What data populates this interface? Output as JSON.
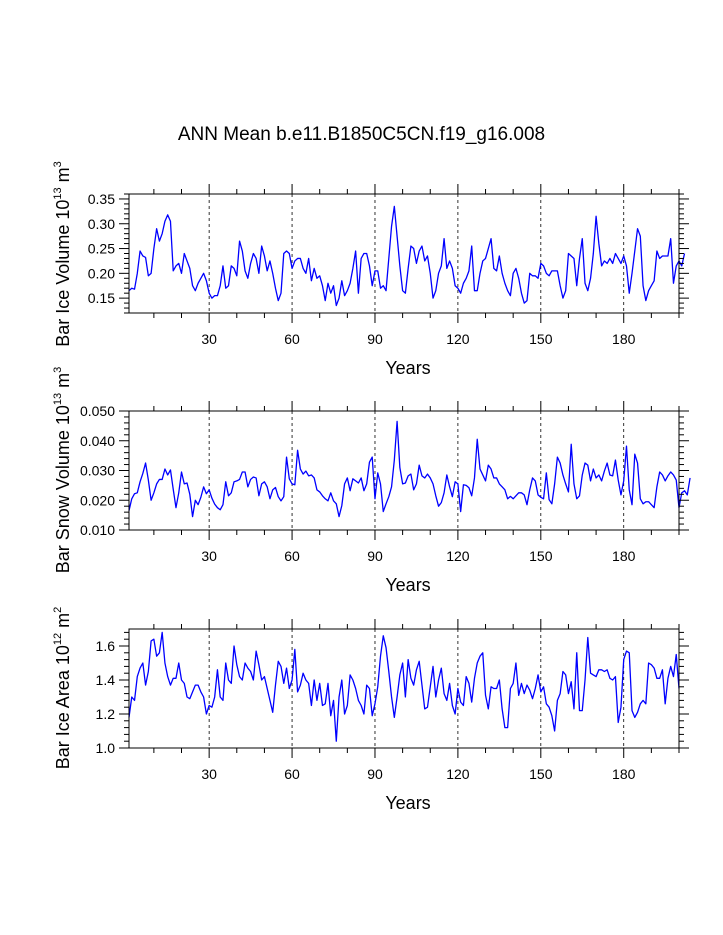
{
  "title": "ANN Mean b.e11.B1850C5CN.f19_g16.008",
  "colors": {
    "line": "#0000ff",
    "axis": "#000000",
    "grid": "#000000"
  },
  "chart_data": [
    {
      "type": "line",
      "name": "ice-volume",
      "ylabel_main": "Bar Ice Volume 10",
      "ylabel_exp": "13",
      "ylabel_unit": " m",
      "ylabel_unit_exp": "3",
      "xlabel": "Years",
      "xlim": [
        1,
        200
      ],
      "ylim": [
        0.12,
        0.36
      ],
      "yticks": [
        0.15,
        0.2,
        0.25,
        0.3,
        0.35
      ],
      "ytick_labels": [
        "0.15",
        "0.20",
        "0.25",
        "0.30",
        "0.35"
      ],
      "xticks": [
        30,
        60,
        90,
        120,
        150,
        180
      ],
      "xtick_labels": [
        "30",
        "60",
        "90",
        "120",
        "150",
        "180"
      ],
      "vlines": [
        30,
        60,
        90,
        120,
        150,
        180
      ],
      "x_start": 1,
      "values": [
        0.165,
        0.17,
        0.168,
        0.2,
        0.245,
        0.235,
        0.232,
        0.195,
        0.2,
        0.25,
        0.29,
        0.265,
        0.28,
        0.305,
        0.318,
        0.305,
        0.205,
        0.215,
        0.22,
        0.2,
        0.24,
        0.225,
        0.21,
        0.175,
        0.165,
        0.18,
        0.19,
        0.2,
        0.185,
        0.16,
        0.15,
        0.155,
        0.155,
        0.175,
        0.215,
        0.17,
        0.175,
        0.215,
        0.21,
        0.195,
        0.265,
        0.245,
        0.205,
        0.19,
        0.22,
        0.24,
        0.23,
        0.2,
        0.255,
        0.235,
        0.205,
        0.225,
        0.2,
        0.17,
        0.145,
        0.16,
        0.24,
        0.245,
        0.24,
        0.21,
        0.225,
        0.23,
        0.23,
        0.21,
        0.2,
        0.23,
        0.185,
        0.21,
        0.19,
        0.195,
        0.175,
        0.145,
        0.18,
        0.16,
        0.175,
        0.135,
        0.15,
        0.185,
        0.155,
        0.165,
        0.18,
        0.21,
        0.245,
        0.16,
        0.23,
        0.24,
        0.24,
        0.215,
        0.175,
        0.205,
        0.205,
        0.17,
        0.175,
        0.165,
        0.23,
        0.295,
        0.335,
        0.275,
        0.215,
        0.165,
        0.16,
        0.21,
        0.255,
        0.25,
        0.22,
        0.245,
        0.255,
        0.225,
        0.235,
        0.2,
        0.15,
        0.165,
        0.2,
        0.215,
        0.27,
        0.21,
        0.225,
        0.21,
        0.175,
        0.17,
        0.16,
        0.18,
        0.19,
        0.205,
        0.255,
        0.165,
        0.165,
        0.2,
        0.225,
        0.23,
        0.25,
        0.27,
        0.21,
        0.205,
        0.235,
        0.2,
        0.18,
        0.165,
        0.155,
        0.2,
        0.21,
        0.19,
        0.16,
        0.14,
        0.145,
        0.2,
        0.195,
        0.195,
        0.19,
        0.22,
        0.215,
        0.2,
        0.195,
        0.205,
        0.205,
        0.205,
        0.175,
        0.15,
        0.165,
        0.24,
        0.235,
        0.23,
        0.175,
        0.23,
        0.27,
        0.18,
        0.165,
        0.19,
        0.24,
        0.315,
        0.26,
        0.215,
        0.225,
        0.22,
        0.23,
        0.22,
        0.24,
        0.23,
        0.22,
        0.235,
        0.215,
        0.16,
        0.2,
        0.245,
        0.29,
        0.275,
        0.175,
        0.145,
        0.165,
        0.175,
        0.185,
        0.245,
        0.23,
        0.235,
        0.235,
        0.235,
        0.27,
        0.18,
        0.215,
        0.225,
        0.215,
        0.24
      ]
    },
    {
      "type": "line",
      "name": "snow-volume",
      "ylabel_main": "Bar Snow Volume 10",
      "ylabel_exp": "13",
      "ylabel_unit": " m",
      "ylabel_unit_exp": "3",
      "xlabel": "Years",
      "xlim": [
        1,
        200
      ],
      "ylim": [
        0.01,
        0.05
      ],
      "yticks": [
        0.01,
        0.02,
        0.03,
        0.04,
        0.05
      ],
      "ytick_labels": [
        "0.010",
        "0.020",
        "0.030",
        "0.040",
        "0.050"
      ],
      "xticks": [
        30,
        60,
        90,
        120,
        150,
        180
      ],
      "xtick_labels": [
        "30",
        "60",
        "90",
        "120",
        "150",
        "180"
      ],
      "vlines": [
        30,
        60,
        90,
        120,
        150,
        180
      ],
      "x_start": 1,
      "values": [
        0.0165,
        0.0205,
        0.0222,
        0.0225,
        0.0262,
        0.029,
        0.0325,
        0.0268,
        0.02,
        0.0225,
        0.0255,
        0.027,
        0.027,
        0.0305,
        0.0285,
        0.0302,
        0.0237,
        0.0175,
        0.0225,
        0.0295,
        0.0255,
        0.0258,
        0.022,
        0.0145,
        0.02,
        0.0185,
        0.021,
        0.0245,
        0.0222,
        0.0235,
        0.0207,
        0.0187,
        0.0175,
        0.0168,
        0.0185,
        0.0262,
        0.0215,
        0.0225,
        0.0262,
        0.0265,
        0.027,
        0.0295,
        0.0295,
        0.0245,
        0.027,
        0.0278,
        0.0275,
        0.0215,
        0.0255,
        0.0262,
        0.0245,
        0.0205,
        0.0235,
        0.0243,
        0.0212,
        0.0198,
        0.0212,
        0.0345,
        0.0272,
        0.0255,
        0.0252,
        0.0368,
        0.0305,
        0.0288,
        0.0298,
        0.0282,
        0.0285,
        0.0275,
        0.0235,
        0.0228,
        0.0215,
        0.0205,
        0.0198,
        0.0225,
        0.0198,
        0.0188,
        0.0145,
        0.0182,
        0.0255,
        0.0275,
        0.0232,
        0.0272,
        0.0265,
        0.0258,
        0.0275,
        0.0232,
        0.0255,
        0.0328,
        0.0345,
        0.0205,
        0.0292,
        0.0255,
        0.0162,
        0.0188,
        0.0212,
        0.0245,
        0.0335,
        0.0465,
        0.031,
        0.0255,
        0.0258,
        0.0282,
        0.0288,
        0.0235,
        0.0255,
        0.0318,
        0.0282,
        0.0275,
        0.0288,
        0.0275,
        0.0255,
        0.0215,
        0.018,
        0.0192,
        0.0225,
        0.0285,
        0.0245,
        0.0212,
        0.0262,
        0.0255,
        0.0162,
        0.0252,
        0.025,
        0.0242,
        0.0215,
        0.0275,
        0.0405,
        0.0305,
        0.0285,
        0.0265,
        0.0318,
        0.0305,
        0.0275,
        0.0275,
        0.0255,
        0.0245,
        0.0235,
        0.0205,
        0.0213,
        0.0205,
        0.0215,
        0.0225,
        0.0225,
        0.0218,
        0.0185,
        0.0235,
        0.0275,
        0.0265,
        0.0218,
        0.021,
        0.0205,
        0.0292,
        0.0202,
        0.0188,
        0.0255,
        0.0345,
        0.0325,
        0.0285,
        0.0255,
        0.0228,
        0.0388,
        0.0255,
        0.0205,
        0.0215,
        0.0285,
        0.0325,
        0.0318,
        0.0265,
        0.0305,
        0.0275,
        0.0285,
        0.0265,
        0.0298,
        0.0325,
        0.0285,
        0.0282,
        0.0335,
        0.0268,
        0.0218,
        0.0265,
        0.0382,
        0.0235,
        0.0185,
        0.0355,
        0.0325,
        0.0205,
        0.0188,
        0.0195,
        0.0195,
        0.0185,
        0.0175,
        0.0245,
        0.0295,
        0.0285,
        0.0265,
        0.0282,
        0.0295,
        0.0285,
        0.0268,
        0.0175,
        0.0225,
        0.0232,
        0.0218,
        0.0275
      ]
    },
    {
      "type": "line",
      "name": "ice-area",
      "ylabel_main": "Bar Ice Area 10",
      "ylabel_exp": "12",
      "ylabel_unit": " m",
      "ylabel_unit_exp": "2",
      "xlabel": "Years",
      "xlim": [
        1,
        200
      ],
      "ylim": [
        1.0,
        1.7
      ],
      "yticks": [
        1.0,
        1.2,
        1.4,
        1.6
      ],
      "ytick_labels": [
        "1.0",
        "1.2",
        "1.4",
        "1.6"
      ],
      "xticks": [
        30,
        60,
        90,
        120,
        150,
        180
      ],
      "xtick_labels": [
        "30",
        "60",
        "90",
        "120",
        "150",
        "180"
      ],
      "vlines": [
        30,
        60,
        90,
        120,
        150,
        180
      ],
      "x_start": 1,
      "values": [
        1.18,
        1.3,
        1.28,
        1.42,
        1.47,
        1.5,
        1.37,
        1.45,
        1.63,
        1.64,
        1.54,
        1.56,
        1.68,
        1.5,
        1.42,
        1.37,
        1.41,
        1.41,
        1.5,
        1.4,
        1.38,
        1.3,
        1.29,
        1.33,
        1.37,
        1.37,
        1.33,
        1.3,
        1.2,
        1.25,
        1.24,
        1.3,
        1.46,
        1.3,
        1.28,
        1.5,
        1.4,
        1.38,
        1.6,
        1.49,
        1.42,
        1.4,
        1.5,
        1.47,
        1.45,
        1.4,
        1.57,
        1.49,
        1.4,
        1.42,
        1.35,
        1.28,
        1.21,
        1.37,
        1.51,
        1.48,
        1.38,
        1.47,
        1.35,
        1.4,
        1.58,
        1.33,
        1.37,
        1.44,
        1.4,
        1.38,
        1.25,
        1.4,
        1.28,
        1.38,
        1.25,
        1.26,
        1.38,
        1.19,
        1.28,
        1.04,
        1.3,
        1.4,
        1.2,
        1.25,
        1.43,
        1.4,
        1.35,
        1.28,
        1.25,
        1.2,
        1.37,
        1.35,
        1.19,
        1.26,
        1.36,
        1.54,
        1.66,
        1.59,
        1.45,
        1.3,
        1.18,
        1.3,
        1.43,
        1.5,
        1.3,
        1.52,
        1.41,
        1.37,
        1.46,
        1.51,
        1.37,
        1.23,
        1.24,
        1.36,
        1.48,
        1.3,
        1.4,
        1.47,
        1.32,
        1.28,
        1.38,
        1.25,
        1.2,
        1.35,
        1.27,
        1.25,
        1.42,
        1.38,
        1.27,
        1.41,
        1.5,
        1.54,
        1.56,
        1.31,
        1.23,
        1.36,
        1.35,
        1.35,
        1.4,
        1.23,
        1.12,
        1.12,
        1.35,
        1.38,
        1.5,
        1.31,
        1.38,
        1.32,
        1.37,
        1.34,
        1.29,
        1.35,
        1.43,
        1.33,
        1.36,
        1.26,
        1.24,
        1.19,
        1.1,
        1.28,
        1.32,
        1.45,
        1.43,
        1.32,
        1.39,
        1.23,
        1.56,
        1.22,
        1.22,
        1.4,
        1.65,
        1.44,
        1.43,
        1.42,
        1.46,
        1.46,
        1.45,
        1.46,
        1.41,
        1.4,
        1.42,
        1.15,
        1.24,
        1.52,
        1.57,
        1.56,
        1.22,
        1.18,
        1.21,
        1.26,
        1.28,
        1.26,
        1.5,
        1.49,
        1.47,
        1.41,
        1.41,
        1.46,
        1.26,
        1.41,
        1.48,
        1.42,
        1.55,
        1.35
      ]
    }
  ]
}
